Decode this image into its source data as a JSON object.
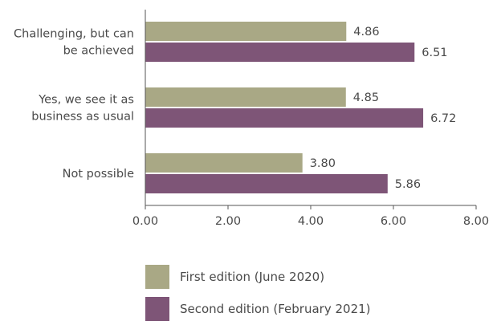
{
  "chart_data": {
    "type": "bar",
    "orientation": "horizontal",
    "categories": [
      [
        "Challenging, but can",
        "be achieved"
      ],
      [
        "Yes, we see it as",
        "business as usual"
      ],
      [
        "Not possible"
      ]
    ],
    "series": [
      {
        "name": "First edition (June 2020)",
        "values": [
          4.86,
          4.85,
          3.8
        ],
        "labels": [
          "4.86",
          "4.85",
          "3.80"
        ],
        "color": "#a9a885"
      },
      {
        "name": "Second edition (February 2021)",
        "values": [
          6.51,
          6.72,
          5.86
        ],
        "labels": [
          "6.51",
          "6.72",
          "5.86"
        ],
        "color": "#7e5577"
      }
    ],
    "xlim": [
      0,
      8
    ],
    "xticks": [
      "0.00",
      "2.00",
      "4.00",
      "6.00",
      "8.00"
    ],
    "title": "",
    "xlabel": "",
    "ylabel": "",
    "grid": false,
    "legend_position": "bottom"
  }
}
